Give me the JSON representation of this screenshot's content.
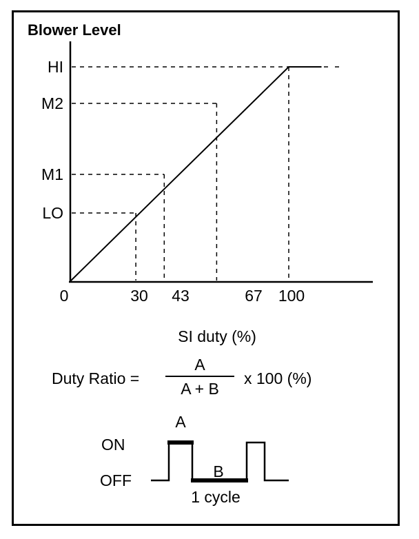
{
  "chart_data": {
    "type": "line",
    "title": "Blower Level",
    "xlabel": "SI duty (%)",
    "ylabel": "",
    "x_ticks": [
      "0",
      "30",
      "43",
      "67",
      "100"
    ],
    "y_levels": [
      "LO",
      "M1",
      "M2",
      "HI"
    ],
    "series": [
      {
        "x": [
          0,
          100,
          115
        ],
        "y_level": [
          0,
          4,
          4
        ]
      }
    ],
    "reference_points": [
      {
        "x": 30,
        "level": "LO"
      },
      {
        "x": 43,
        "level": "M1"
      },
      {
        "x": 67,
        "level": "M2"
      },
      {
        "x": 100,
        "level": "HI"
      }
    ]
  },
  "formula": {
    "lhs": "Duty Ratio =",
    "numerator": "A",
    "denominator": "A + B",
    "rhs": "x 100 (%)"
  },
  "waveform": {
    "on_label": "ON",
    "off_label": "OFF",
    "a_label": "A",
    "b_label": "B",
    "cycle_label": "1 cycle"
  }
}
